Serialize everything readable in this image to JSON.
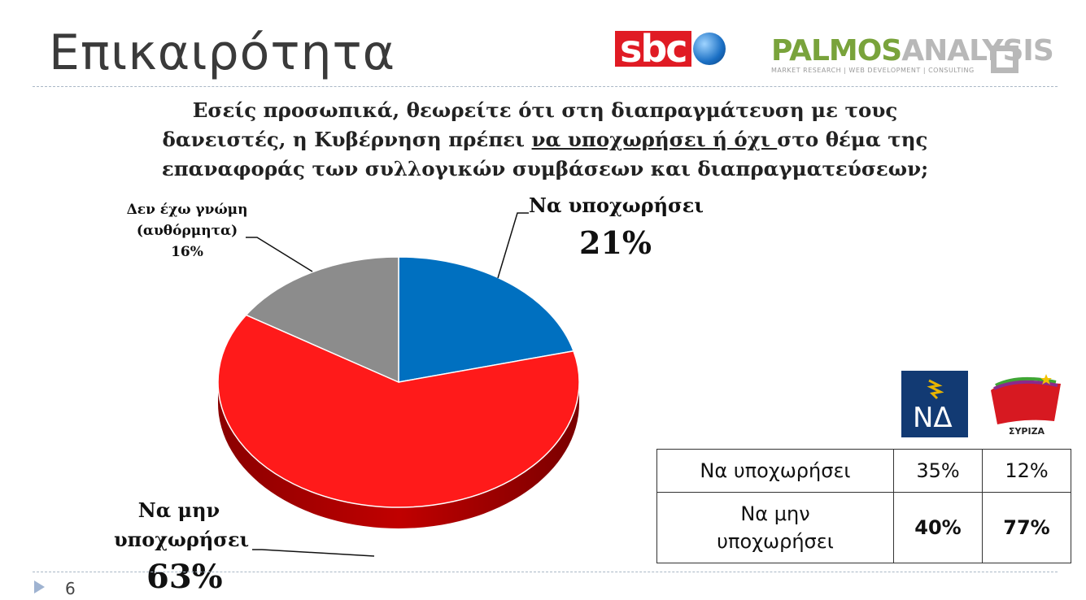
{
  "slide": {
    "title": "Επικαιρότητα",
    "page_number": "6"
  },
  "logos": {
    "sbc": "sbc",
    "palmos_a": "PALMOS",
    "palmos_b": "ANALYSIS",
    "palmos_sub": "MARKET RESEARCH | WEB DEVELOPMENT | CONSULTING",
    "nd": "ΝΔ",
    "syriza": "ΣΥΡΙΖΑ"
  },
  "question": {
    "part1": "Εσείς προσωπικά, θεωρείτε ότι στη διαπραγμάτευση με τους δανειστές, η Κυβέρνηση πρέπει ",
    "underlined": "να υποχωρήσει ή όχι ",
    "part2": "στο θέμα της επαναφοράς των συλλογικών συμβάσεων και διαπραγματεύσεων;"
  },
  "chart_data": {
    "type": "pie",
    "title": "Εσείς προσωπικά, θεωρείτε ότι στη διαπραγμάτευση με τους δανειστές, η Κυβέρνηση πρέπει να υποχωρήσει ή όχι στο θέμα της επαναφοράς των συλλογικών συμβάσεων και διαπραγματεύσεων;",
    "slices": [
      {
        "label": "Να υποχωρήσει",
        "value": 21,
        "value_label": "21%",
        "color": "#0070c0"
      },
      {
        "label": "Να μην υποχωρήσει",
        "value": 63,
        "value_label": "63%",
        "color": "#ff1a1a"
      },
      {
        "label_line1": "Δεν έχω γνώμη",
        "label_line2": "(αυθόρμητα)",
        "value": 16,
        "value_label": "16%",
        "color": "#8c8c8c"
      }
    ]
  },
  "party_table": {
    "rows": [
      {
        "label": "Να υποχωρήσει",
        "nd": "35%",
        "syriza": "12%"
      },
      {
        "label_line1": "Να μην",
        "label_line2": "υποχωρήσει",
        "nd": "40%",
        "syriza": "77%"
      }
    ]
  },
  "colors": {
    "accent_blue": "#0070c0",
    "accent_red": "#ff1a1a",
    "accent_gray": "#8c8c8c",
    "nd_blue": "#123a73",
    "palmos_green": "#79a33b"
  }
}
